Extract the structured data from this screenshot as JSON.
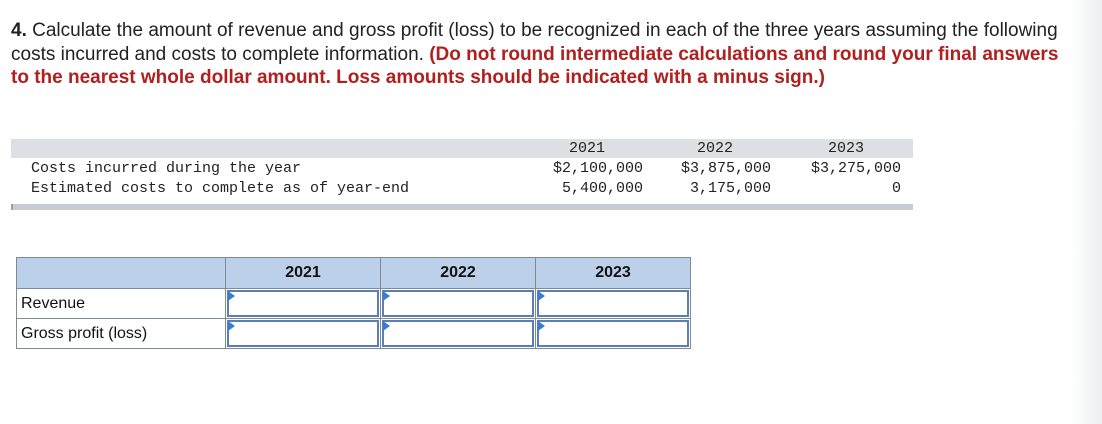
{
  "question": {
    "number": "4.",
    "text": " Calculate the amount of revenue and gross profit (loss) to be recognized in each of the three years assuming the following costs incurred and costs to complete information.",
    "instruction": "(Do not round intermediate calculations and round your final answers to the nearest whole dollar amount. Loss amounts should be indicated with a minus sign.)"
  },
  "given_data": {
    "years": [
      "2021",
      "2022",
      "2023"
    ],
    "rows": [
      {
        "label": "Costs incurred during the year",
        "values": [
          "$2,100,000",
          "$3,875,000",
          "$3,275,000"
        ]
      },
      {
        "label": "Estimated costs to complete as of year-end",
        "values": [
          "5,400,000",
          "3,175,000",
          "0"
        ]
      }
    ]
  },
  "answer_table": {
    "columns": [
      "2021",
      "2022",
      "2023"
    ],
    "rows": [
      {
        "label": "Revenue",
        "values": [
          "",
          "",
          ""
        ]
      },
      {
        "label": "Gross profit (loss)",
        "values": [
          "",
          "",
          ""
        ]
      }
    ]
  }
}
